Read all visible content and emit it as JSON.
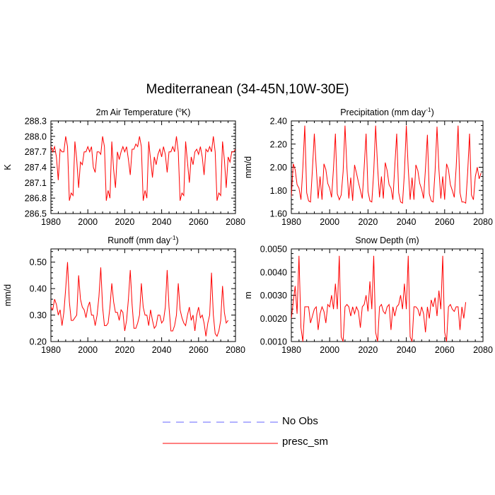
{
  "title": "Mediterranean (34-45N,10W-30E)",
  "legend": {
    "entries": [
      {
        "label": "No Obs",
        "color": "#6666ff",
        "dash": "dashed"
      },
      {
        "label": "presc_sm",
        "color": "#ff0000",
        "dash": "solid"
      }
    ]
  },
  "chart_data": [
    {
      "type": "line",
      "title": "2m Air Temperature (°K)",
      "title_parts": [
        "2m Air Temperature (",
        "o",
        "K)"
      ],
      "xlabel": "",
      "ylabel": "K",
      "xlim": [
        1980,
        2080
      ],
      "ylim": [
        286.5,
        288.3
      ],
      "xticks": [
        "1980",
        "2000",
        "2020",
        "2040",
        "2060",
        "2080"
      ],
      "yticks": [
        "286.5",
        "286.8",
        "287.1",
        "287.4",
        "287.7",
        "288.0",
        "288.3"
      ],
      "series": [
        {
          "name": "presc_sm",
          "color": "#ff0000",
          "x_start": 1979,
          "x_step": 1,
          "values": [
            287.5,
            287.8,
            287.7,
            287.8,
            287.6,
            287.15,
            287.75,
            287.7,
            287.7,
            288.0,
            287.8,
            286.75,
            286.9,
            286.85,
            287.9,
            287.55,
            287.0,
            287.5,
            287.45,
            287.7,
            287.7,
            287.8,
            287.7,
            287.8,
            287.4,
            287.3,
            287.7,
            287.7,
            287.65,
            288.0,
            287.8,
            286.75,
            286.95,
            286.8,
            287.9,
            287.35,
            287.0,
            287.7,
            287.55,
            287.7,
            287.8,
            287.7,
            287.8,
            287.55,
            287.25,
            287.75,
            287.75,
            287.85,
            287.8,
            288.0,
            287.8,
            286.75,
            286.95,
            286.8,
            287.9,
            287.55,
            287.2,
            287.6,
            287.45,
            287.65,
            287.75,
            287.6,
            287.8,
            287.65,
            287.3,
            287.7,
            287.7,
            287.8,
            287.7,
            288.0,
            287.7,
            286.75,
            286.9,
            286.85,
            287.9,
            287.5,
            287.1,
            287.6,
            287.45,
            287.7,
            287.75,
            287.65,
            287.8,
            287.6,
            287.25,
            287.75,
            287.7,
            287.8,
            287.7,
            288.0,
            287.7,
            286.75,
            286.9,
            286.85,
            287.9,
            287.55,
            287.0,
            287.6,
            287.5,
            287.7,
            287.7,
            287.75
          ]
        }
      ]
    },
    {
      "type": "line",
      "title": "Precipitation (mm day-1)",
      "title_parts": [
        "Precipitation (mm day",
        "-1",
        ")"
      ],
      "xlabel": "",
      "ylabel": "mm/d",
      "xlim": [
        1980,
        2080
      ],
      "ylim": [
        1.6,
        2.4
      ],
      "xticks": [
        "1980",
        "2000",
        "2020",
        "2040",
        "2060",
        "2080"
      ],
      "yticks": [
        "1.60",
        "1.80",
        "2.00",
        "2.20",
        "2.40"
      ],
      "series": [
        {
          "name": "presc_sm",
          "color": "#ff0000",
          "x_start": 1979,
          "x_step": 1,
          "values": [
            1.65,
            1.75,
            2.03,
            1.98,
            1.85,
            1.82,
            1.72,
            2.0,
            2.36,
            1.78,
            1.71,
            1.7,
            1.98,
            2.29,
            2.0,
            1.73,
            1.92,
            1.72,
            2.03,
            1.98,
            1.86,
            1.82,
            1.74,
            1.99,
            2.29,
            1.77,
            1.72,
            1.76,
            1.96,
            2.36,
            1.99,
            1.73,
            1.91,
            1.71,
            2.02,
            1.95,
            1.87,
            1.8,
            1.73,
            2.0,
            2.29,
            1.79,
            1.71,
            1.7,
            1.96,
            2.36,
            2.0,
            1.74,
            1.92,
            1.73,
            2.04,
            1.97,
            1.85,
            1.82,
            1.72,
            2.01,
            2.29,
            1.78,
            1.7,
            1.69,
            1.95,
            2.36,
            1.99,
            1.72,
            1.91,
            1.72,
            2.02,
            1.97,
            1.86,
            1.81,
            1.73,
            1.99,
            2.28,
            1.77,
            1.71,
            1.7,
            1.97,
            2.35,
            1.98,
            1.73,
            1.92,
            1.72,
            2.03,
            1.98,
            1.85,
            1.8,
            1.74,
            2.0,
            2.36,
            1.78,
            1.7,
            1.7,
            1.69,
            1.95,
            2.29,
            1.76,
            1.72,
            1.92,
            2.0,
            1.9,
            1.95
          ]
        }
      ]
    },
    {
      "type": "line",
      "title": "Runoff (mm day-1)",
      "title_parts": [
        "Runoff (mm day",
        "-1",
        ")"
      ],
      "xlabel": "",
      "ylabel": "mm/d",
      "xlim": [
        1980,
        2080
      ],
      "ylim": [
        0.2,
        0.55
      ],
      "xticks": [
        "1980",
        "2000",
        "2020",
        "2040",
        "2060",
        "2080"
      ],
      "yticks": [
        "0.20",
        "0.30",
        "0.40",
        "0.50"
      ],
      "series": [
        {
          "name": "presc_sm",
          "color": "#ff0000",
          "x_start": 1979,
          "x_step": 1,
          "values": [
            0.26,
            0.33,
            0.32,
            0.36,
            0.34,
            0.3,
            0.32,
            0.26,
            0.31,
            0.4,
            0.5,
            0.35,
            0.28,
            0.28,
            0.29,
            0.3,
            0.45,
            0.36,
            0.33,
            0.32,
            0.29,
            0.33,
            0.35,
            0.3,
            0.3,
            0.26,
            0.3,
            0.37,
            0.48,
            0.33,
            0.26,
            0.26,
            0.27,
            0.33,
            0.42,
            0.35,
            0.31,
            0.31,
            0.28,
            0.32,
            0.31,
            0.24,
            0.28,
            0.36,
            0.47,
            0.34,
            0.25,
            0.25,
            0.27,
            0.3,
            0.42,
            0.33,
            0.3,
            0.3,
            0.26,
            0.32,
            0.28,
            0.25,
            0.26,
            0.3,
            0.3,
            0.27,
            0.28,
            0.33,
            0.47,
            0.33,
            0.24,
            0.24,
            0.26,
            0.3,
            0.42,
            0.32,
            0.29,
            0.27,
            0.26,
            0.3,
            0.33,
            0.28,
            0.3,
            0.24,
            0.3,
            0.33,
            0.29,
            0.3,
            0.27,
            0.22,
            0.27,
            0.3,
            0.46,
            0.3,
            0.23,
            0.22,
            0.24,
            0.28,
            0.41,
            0.31,
            0.27,
            0.28
          ]
        }
      ]
    },
    {
      "type": "line",
      "title": "Snow Depth (m)",
      "title_parts": [
        "Snow Depth (m)"
      ],
      "xlabel": "",
      "ylabel": "m",
      "xlim": [
        1980,
        2080
      ],
      "ylim": [
        0.001,
        0.005
      ],
      "xticks": [
        "1980",
        "2000",
        "2020",
        "2040",
        "2060",
        "2080"
      ],
      "yticks": [
        "0.0010",
        "0.0020",
        "0.0030",
        "0.0040",
        "0.0050"
      ],
      "series": [
        {
          "name": "presc_sm",
          "color": "#ff0000",
          "x_start": 1979,
          "x_step": 1,
          "values": [
            0.0028,
            0.002,
            0.0027,
            0.0034,
            0.0022,
            0.0047,
            0.0016,
            0.001,
            0.0025,
            0.0025,
            0.0025,
            0.0018,
            0.0021,
            0.0024,
            0.0025,
            0.0015,
            0.0022,
            0.0025,
            0.0023,
            0.0018,
            0.0026,
            0.0025,
            0.003,
            0.0024,
            0.0035,
            0.0024,
            0.0047,
            0.0012,
            0.001,
            0.0025,
            0.0026,
            0.0025,
            0.0021,
            0.0025,
            0.0022,
            0.0025,
            0.0023,
            0.0016,
            0.0025,
            0.0026,
            0.003,
            0.0023,
            0.0036,
            0.0024,
            0.0047,
            0.0014,
            0.001,
            0.0025,
            0.0026,
            0.0023,
            0.0022,
            0.0025,
            0.0026,
            0.0015,
            0.0025,
            0.0021,
            0.0025,
            0.0026,
            0.003,
            0.0024,
            0.0035,
            0.0024,
            0.0047,
            0.0012,
            0.001,
            0.0025,
            0.0025,
            0.0024,
            0.0021,
            0.0025,
            0.0022,
            0.0014,
            0.0025,
            0.002,
            0.0028,
            0.0025,
            0.0029,
            0.0021,
            0.0032,
            0.0024,
            0.0047,
            0.0014,
            0.001,
            0.0025,
            0.0026,
            0.0024,
            0.0023,
            0.0025,
            0.0025,
            0.0015,
            0.0025,
            0.002,
            0.0027
          ]
        }
      ]
    }
  ]
}
